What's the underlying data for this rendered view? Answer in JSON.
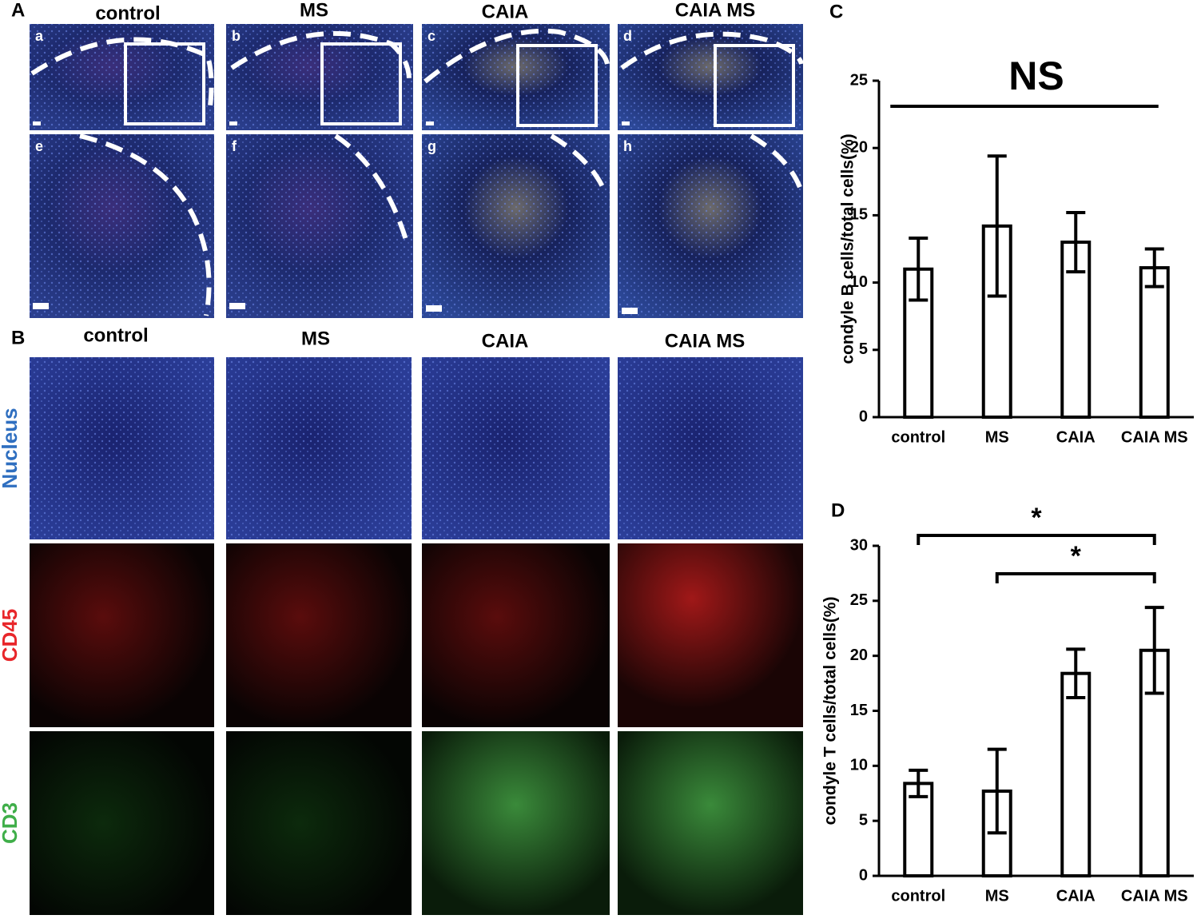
{
  "panel_a": {
    "label": "A",
    "columns": [
      "control",
      "MS",
      "CAIA",
      "CAIA MS"
    ],
    "subpanels": [
      "a",
      "b",
      "c",
      "d",
      "e",
      "f",
      "g",
      "h"
    ]
  },
  "panel_b": {
    "label": "B",
    "columns": [
      "control",
      "MS",
      "CAIA",
      "CAIA MS"
    ],
    "rows": [
      "Nucleus",
      "CD45",
      "CD3"
    ]
  },
  "chart_data": [
    {
      "type": "bar",
      "panel_label": "C",
      "y_label": "condyle B cells/total cells(%)",
      "categories": [
        "control",
        "MS",
        "CAIA",
        "CAIA MS"
      ],
      "values": [
        11.0,
        14.2,
        13.0,
        11.1
      ],
      "errors": [
        2.3,
        5.2,
        2.2,
        1.4
      ],
      "color": "#ffffff",
      "ylim": [
        0,
        25
      ],
      "yticks": [
        0,
        5,
        10,
        15,
        20,
        25
      ],
      "grid": false,
      "significance": [
        {
          "label": "NS",
          "between": [
            "control",
            "CAIA MS"
          ]
        }
      ]
    },
    {
      "type": "bar",
      "panel_label": "D",
      "y_label": "condyle T cells/total cells(%)",
      "categories": [
        "control",
        "MS",
        "CAIA",
        "CAIA MS"
      ],
      "values": [
        8.4,
        7.7,
        18.4,
        20.5
      ],
      "errors": [
        1.2,
        3.8,
        2.2,
        3.9
      ],
      "color": "#ffffff",
      "ylim": [
        0,
        30
      ],
      "yticks": [
        0,
        5,
        10,
        15,
        20,
        25,
        30
      ],
      "grid": false,
      "significance": [
        {
          "label": "*",
          "between": [
            "control",
            "CAIA MS"
          ]
        },
        {
          "label": "*",
          "between": [
            "MS",
            "CAIA MS"
          ]
        }
      ]
    }
  ]
}
